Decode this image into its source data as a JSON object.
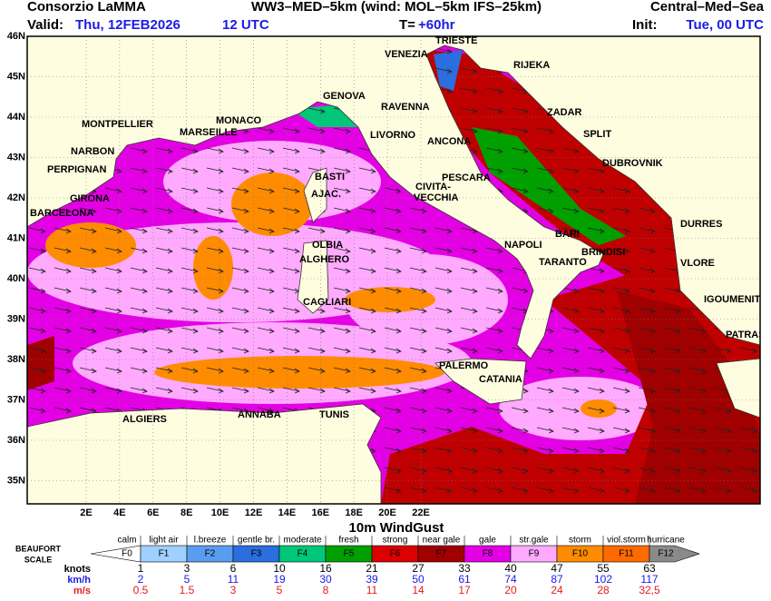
{
  "header": {
    "org": "Consorzio LaMMA",
    "model": "WW3–MED–5km (wind: MOL–5km IFS–25km)",
    "region": "Central–Med–Sea",
    "valid_label": "Valid:",
    "valid_date": "Thu, 12FEB2026",
    "valid_time": "12 UTC",
    "lead_label": "T=",
    "lead": "+60hr",
    "init_label": "Init:",
    "init": "Tue, 00 UTC"
  },
  "map": {
    "lat_labels": [
      "46N",
      "45N",
      "44N",
      "43N",
      "42N",
      "41N",
      "40N",
      "39N",
      "38N",
      "37N",
      "36N",
      "35N"
    ],
    "lon_labels": [
      "2E",
      "4E",
      "6E",
      "8E",
      "10E",
      "12E",
      "14E",
      "16E",
      "18E",
      "20E",
      "22E"
    ],
    "cities": [
      "TRIESTE",
      "VENEZIA",
      "RIJEKA",
      "RAVENNA",
      "GENOVA",
      "ZADAR",
      "MONTPELLIER",
      "MONACO",
      "MARSEILLE",
      "LIVORNO",
      "ANCONA",
      "SPLIT",
      "NARBON",
      "DUBROVNIK",
      "PERPIGNAN",
      "BASTI",
      "PESCARA",
      "AJAC.",
      "CIVITA-",
      "VECCHIA",
      "GIRONA",
      "BARCELONA",
      "DURRES",
      "BARI",
      "NAPOLI",
      "OLBIA",
      "BRINDISI",
      "ALGHERO",
      "TARANTO",
      "VLORE",
      "IGOUMENITSA",
      "CAGLIARI",
      "PATRAS",
      "PALERMO",
      "CATANIA",
      "ALGIERS",
      "ANNABA",
      "TUNIS"
    ]
  },
  "legend": {
    "title": "10m WindGust",
    "scale_label": [
      "BEAUFORT",
      "SCALE"
    ],
    "classes": [
      {
        "name": "calm",
        "force": "F0",
        "color": "#ffffff"
      },
      {
        "name": "light air",
        "force": "F1",
        "color": "#9fd0ff"
      },
      {
        "name": "l.breeze",
        "force": "F2",
        "color": "#5a9cf0"
      },
      {
        "name": "gentle br.",
        "force": "F3",
        "color": "#2a6ee0"
      },
      {
        "name": "moderate",
        "force": "F4",
        "color": "#00c878"
      },
      {
        "name": "fresh",
        "force": "F5",
        "color": "#00a000"
      },
      {
        "name": "strong",
        "force": "F6",
        "color": "#dc0000"
      },
      {
        "name": "near gale",
        "force": "F7",
        "color": "#a00000"
      },
      {
        "name": "gale",
        "force": "F8",
        "color": "#e400e4"
      },
      {
        "name": "str.gale",
        "force": "F9",
        "color": "#ffaaff"
      },
      {
        "name": "storm",
        "force": "F10",
        "color": "#ff8c00"
      },
      {
        "name": "viol.storm",
        "force": "F11",
        "color": "#ff6a00"
      },
      {
        "name": "hurricane",
        "force": "F12",
        "color": "#8a8a8a"
      }
    ],
    "rows": [
      {
        "unit": "knots",
        "color": "#000000",
        "values": [
          "1",
          "3",
          "6",
          "10",
          "16",
          "21",
          "27",
          "33",
          "40",
          "47",
          "55",
          "63"
        ]
      },
      {
        "unit": "km/h",
        "color": "#1a1ae6",
        "values": [
          "2",
          "5",
          "11",
          "19",
          "30",
          "39",
          "50",
          "61",
          "74",
          "87",
          "102",
          "117"
        ]
      },
      {
        "unit": "m/s",
        "color": "#e61a1a",
        "values": [
          "0.5",
          "1.5",
          "3",
          "5",
          "8",
          "11",
          "14",
          "17",
          "20",
          "24",
          "28",
          "32,5"
        ]
      }
    ]
  }
}
